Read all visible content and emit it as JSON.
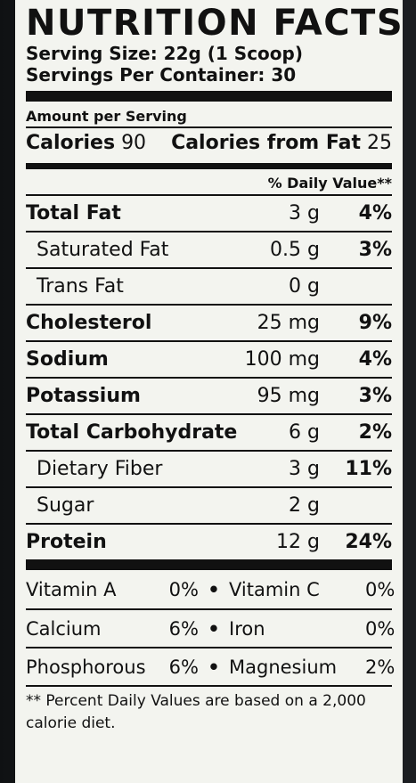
{
  "title": "NUTRITION FACTS",
  "serving_size": "Serving Size: 22g (1 Scoop)",
  "servings_per_container": "Servings Per Container: 30",
  "amount_per_serving": "Amount per Serving",
  "calories": {
    "label": "Calories",
    "value": "90"
  },
  "calories_from_fat": {
    "label": "Calories from Fat",
    "value": "25"
  },
  "daily_value_header": "% Daily Value**",
  "nutrients": [
    {
      "name": "Total Fat",
      "amount": "3 g",
      "dv": "4%"
    },
    {
      "name": "Saturated Fat",
      "amount": "0.5 g",
      "dv": "3%"
    },
    {
      "name": "Trans Fat",
      "amount": "0 g",
      "dv": ""
    },
    {
      "name": "Cholesterol",
      "amount": "25 mg",
      "dv": "9%"
    },
    {
      "name": "Sodium",
      "amount": "100 mg",
      "dv": "4%"
    },
    {
      "name": "Potassium",
      "amount": "95 mg",
      "dv": "3%"
    },
    {
      "name": "Total Carbohydrate",
      "amount": "6 g",
      "dv": "2%"
    },
    {
      "name": "Dietary Fiber",
      "amount": "3 g",
      "dv": "11%"
    },
    {
      "name": "Sugar",
      "amount": "2 g",
      "dv": ""
    },
    {
      "name": "Protein",
      "amount": "12 g",
      "dv": "24%"
    }
  ],
  "vitamins": [
    {
      "a_name": "Vitamin A",
      "a_pct": "0%",
      "b_name": "Vitamin C",
      "b_pct": "0%"
    },
    {
      "a_name": "Calcium",
      "a_pct": "6%",
      "b_name": "Iron",
      "b_pct": "0%"
    },
    {
      "a_name": "Phosphorous",
      "a_pct": "6%",
      "b_name": "Magnesium",
      "b_pct": "2%"
    }
  ],
  "bullet": "•",
  "footnote": "** Percent Daily Values are based on a 2,000 calorie diet."
}
